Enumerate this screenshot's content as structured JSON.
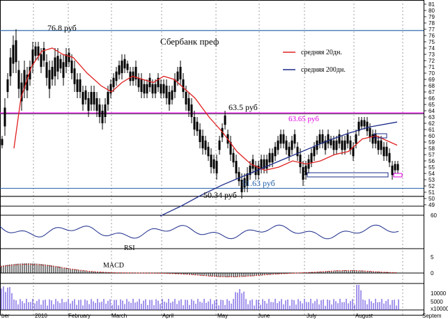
{
  "chart_data": {
    "type": "candlestick",
    "title": "Сбербанк преф",
    "colors": {
      "background": "#ffffff",
      "candle": "#000000",
      "ma20": "#e02020",
      "ma200": "#1a2a8a",
      "magenta": "#e000e0",
      "hline_blue": "#1f5fa8",
      "rsi": "#1a2a8a",
      "macd": "#e02020",
      "volume": "#4a2ad8"
    },
    "price_axis": {
      "min": 49,
      "max": 81,
      "ticks": [
        49,
        50,
        51,
        52,
        53,
        54,
        55,
        56,
        57,
        58,
        59,
        60,
        61,
        62,
        63,
        64,
        65,
        66,
        67,
        68,
        69,
        70,
        71,
        72,
        73,
        74,
        75,
        76,
        77,
        78,
        79,
        80,
        81
      ]
    },
    "x_labels": [
      "ber",
      "2010",
      "February",
      "March",
      "April",
      "May",
      "June",
      "July",
      "August",
      "Septem"
    ],
    "legend": [
      {
        "label": "средняя 20дн.",
        "color": "#e02020"
      },
      {
        "label": "средняя 200дн.",
        "color": "#1a2a8a"
      }
    ],
    "annotations": {
      "top_level": "76.8 руб",
      "level_635": "63.5 руб",
      "level_6365": "63.65 руб",
      "level_5163": "51.63 руб",
      "level_5034": "50.34 руб"
    },
    "levels": [
      76.8,
      63.65,
      63.5,
      51.63,
      50.34
    ],
    "series": [
      {
        "name": "средняя 20дн.",
        "x": [
          20,
          30,
          45,
          60,
          75,
          90,
          105,
          125,
          145,
          160,
          175,
          190,
          205,
          220,
          235,
          250,
          265,
          280,
          300,
          320,
          340,
          360,
          380,
          400,
          420,
          440,
          460,
          480,
          500,
          520,
          540,
          560,
          570
        ],
        "values": [
          58,
          66,
          71,
          73.5,
          74,
          73,
          72.5,
          70,
          68,
          67,
          68.5,
          69.5,
          69,
          68.5,
          69.5,
          69,
          67.5,
          66,
          63,
          60.5,
          57.5,
          55.5,
          54.5,
          55,
          56,
          55.5,
          56,
          57,
          57.5,
          59.5,
          60,
          59,
          58.5
        ]
      },
      {
        "name": "средняя 200дн.",
        "x": [
          230,
          260,
          290,
          320,
          350,
          380,
          410,
          440,
          470,
          500,
          530,
          570
        ],
        "values": [
          47.2,
          48.8,
          50.6,
          52.2,
          53.6,
          55,
          56.4,
          57.8,
          59.2,
          60.4,
          61.4,
          62.2
        ]
      }
    ],
    "candles": [
      [
        3,
        58,
        60
      ],
      [
        7,
        60,
        66
      ],
      [
        11,
        66,
        70
      ],
      [
        15,
        68,
        74
      ],
      [
        19,
        70,
        76
      ],
      [
        23,
        70,
        77
      ],
      [
        27,
        66,
        72
      ],
      [
        31,
        64,
        70
      ],
      [
        35,
        66,
        72
      ],
      [
        39,
        66,
        71
      ],
      [
        43,
        68,
        72
      ],
      [
        47,
        70,
        75
      ],
      [
        51,
        72,
        75
      ],
      [
        55,
        72,
        75
      ],
      [
        59,
        70,
        74
      ],
      [
        63,
        71,
        75
      ],
      [
        67,
        68,
        73
      ],
      [
        71,
        66,
        72
      ],
      [
        75,
        68,
        72
      ],
      [
        79,
        68,
        74
      ],
      [
        83,
        69,
        74
      ],
      [
        87,
        70,
        73
      ],
      [
        91,
        68,
        73
      ],
      [
        95,
        70,
        74
      ],
      [
        99,
        71,
        74
      ],
      [
        103,
        69,
        73
      ],
      [
        107,
        67,
        72
      ],
      [
        111,
        66,
        70
      ],
      [
        115,
        66,
        70
      ],
      [
        119,
        64,
        68
      ],
      [
        123,
        65,
        68
      ],
      [
        127,
        63,
        67
      ],
      [
        131,
        64,
        68
      ],
      [
        135,
        64,
        68
      ],
      [
        139,
        63,
        67
      ],
      [
        143,
        62,
        66
      ],
      [
        147,
        61,
        65
      ],
      [
        151,
        62,
        66
      ],
      [
        155,
        64,
        68
      ],
      [
        159,
        66,
        69
      ],
      [
        163,
        67,
        70
      ],
      [
        167,
        68,
        71
      ],
      [
        171,
        69,
        72
      ],
      [
        175,
        69,
        73
      ],
      [
        179,
        70,
        73
      ],
      [
        183,
        70,
        72
      ],
      [
        187,
        68,
        71
      ],
      [
        191,
        68,
        71
      ],
      [
        195,
        68,
        72
      ],
      [
        199,
        67,
        70
      ],
      [
        203,
        66,
        70
      ],
      [
        207,
        66,
        69
      ],
      [
        211,
        66,
        69
      ],
      [
        215,
        67,
        70
      ],
      [
        219,
        66,
        69
      ],
      [
        223,
        66,
        69
      ],
      [
        227,
        67,
        70
      ],
      [
        231,
        66,
        69
      ],
      [
        235,
        66,
        69
      ],
      [
        239,
        65,
        69
      ],
      [
        243,
        64,
        68
      ],
      [
        247,
        65,
        68
      ],
      [
        251,
        66,
        70
      ],
      [
        255,
        68,
        71
      ],
      [
        259,
        68,
        72
      ],
      [
        263,
        66,
        70
      ],
      [
        267,
        64,
        68
      ],
      [
        271,
        63,
        67
      ],
      [
        275,
        62,
        66
      ],
      [
        279,
        60,
        64
      ],
      [
        283,
        60,
        63
      ],
      [
        287,
        58,
        62
      ],
      [
        291,
        57,
        61
      ],
      [
        295,
        57,
        60
      ],
      [
        299,
        56,
        59
      ],
      [
        303,
        54,
        58
      ],
      [
        307,
        54,
        57
      ],
      [
        311,
        53,
        57
      ],
      [
        315,
        57,
        60
      ],
      [
        319,
        59,
        62
      ],
      [
        323,
        61,
        64
      ],
      [
        327,
        58,
        61
      ],
      [
        331,
        56,
        60
      ],
      [
        335,
        55,
        58
      ],
      [
        339,
        53,
        57
      ],
      [
        343,
        52,
        55
      ],
      [
        347,
        50,
        54
      ],
      [
        351,
        51,
        54
      ],
      [
        355,
        51,
        55
      ],
      [
        359,
        53,
        56
      ],
      [
        363,
        54,
        57
      ],
      [
        367,
        53,
        56
      ],
      [
        371,
        53,
        56
      ],
      [
        375,
        54,
        57
      ],
      [
        379,
        54,
        57
      ],
      [
        383,
        54,
        57
      ],
      [
        387,
        55,
        58
      ],
      [
        391,
        55,
        58
      ],
      [
        395,
        56,
        59
      ],
      [
        399,
        57,
        60
      ],
      [
        403,
        58,
        61
      ],
      [
        407,
        58,
        61
      ],
      [
        411,
        57,
        60
      ],
      [
        415,
        56,
        59
      ],
      [
        419,
        57,
        60
      ],
      [
        423,
        58,
        61
      ],
      [
        427,
        56,
        59
      ],
      [
        431,
        54,
        58
      ],
      [
        435,
        52,
        56
      ],
      [
        439,
        53,
        56
      ],
      [
        443,
        54,
        57
      ],
      [
        447,
        55,
        58
      ],
      [
        451,
        56,
        59
      ],
      [
        455,
        57,
        60
      ],
      [
        459,
        58,
        61
      ],
      [
        463,
        58,
        61
      ],
      [
        467,
        57,
        60
      ],
      [
        471,
        58,
        61
      ],
      [
        475,
        58,
        60
      ],
      [
        479,
        57,
        60
      ],
      [
        483,
        57,
        60
      ],
      [
        487,
        58,
        61
      ],
      [
        491,
        57,
        60
      ],
      [
        495,
        57,
        60
      ],
      [
        499,
        58,
        61
      ],
      [
        503,
        57,
        60
      ],
      [
        507,
        56,
        59
      ],
      [
        511,
        58,
        61
      ],
      [
        515,
        60,
        63
      ],
      [
        519,
        61,
        63
      ],
      [
        523,
        61,
        63
      ],
      [
        527,
        60,
        63
      ],
      [
        531,
        59,
        62
      ],
      [
        535,
        58,
        61
      ],
      [
        539,
        58,
        61
      ],
      [
        543,
        57,
        60
      ],
      [
        547,
        57,
        60
      ],
      [
        551,
        56,
        59
      ],
      [
        555,
        56,
        59
      ],
      [
        559,
        55,
        58
      ],
      [
        563,
        53,
        56
      ],
      [
        567,
        54,
        56
      ],
      [
        571,
        54,
        56
      ]
    ]
  }
}
